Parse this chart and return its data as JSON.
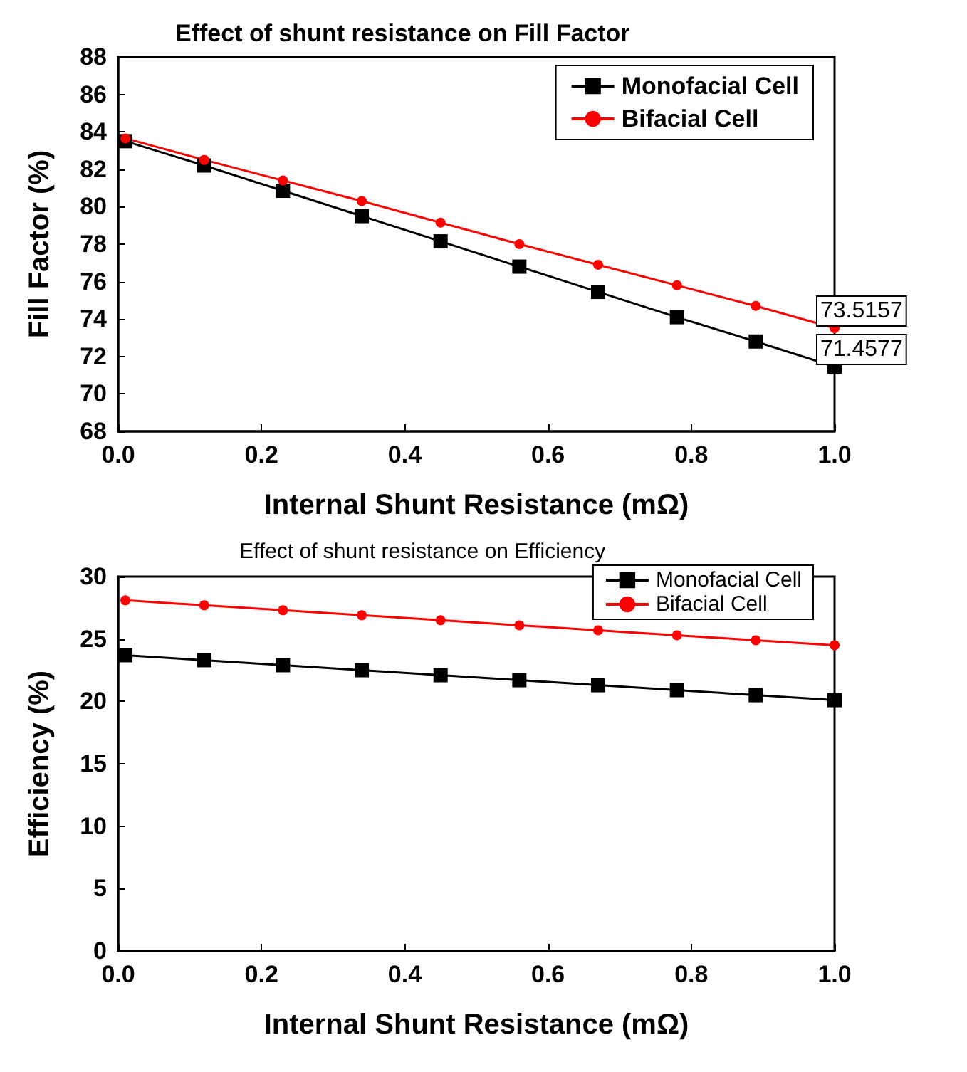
{
  "chart_data": [
    {
      "type": "line",
      "title": "Effect of shunt resistance on Fill Factor",
      "xlabel": "Internal Shunt Resistance (mΩ)",
      "ylabel": "Fill Factor (%)",
      "x": [
        0.01,
        0.12,
        0.23,
        0.34,
        0.45,
        0.56,
        0.67,
        0.78,
        0.89,
        1.0
      ],
      "series": [
        {
          "name": "Monofacial Cell",
          "color": "#000000",
          "marker": "square",
          "values": [
            83.5,
            82.2,
            80.85,
            79.5,
            78.15,
            76.8,
            75.45,
            74.1,
            72.8,
            71.4577
          ]
        },
        {
          "name": "Bifacial Cell",
          "color": "#ff0000",
          "marker": "circle",
          "values": [
            83.65,
            82.5,
            81.4,
            80.3,
            79.15,
            78.0,
            76.9,
            75.8,
            74.7,
            73.5157
          ]
        }
      ],
      "xlim": [
        0,
        1
      ],
      "xticks": [
        {
          "value": 0,
          "label": "0.0"
        },
        {
          "value": 0.2,
          "label": "0.2"
        },
        {
          "value": 0.4,
          "label": "0.4"
        },
        {
          "value": 0.6,
          "label": "0.6"
        },
        {
          "value": 0.8,
          "label": "0.8"
        },
        {
          "value": 1,
          "label": "1.0"
        }
      ],
      "ylim": [
        68,
        88
      ],
      "yticks": [
        68,
        70,
        72,
        74,
        76,
        78,
        80,
        82,
        84,
        86,
        88
      ],
      "grid": false,
      "legend": "top right",
      "annotations": [
        {
          "text": "73.5157",
          "x": 1,
          "y": 73.5157
        },
        {
          "text": "71.4577",
          "x": 1,
          "y": 71.4577
        }
      ]
    },
    {
      "type": "line",
      "title": "Effect of shunt resistance on Efficiency",
      "xlabel": "Internal Shunt Resistance (mΩ)",
      "ylabel": "Efficiency (%)",
      "x": [
        0.01,
        0.12,
        0.23,
        0.34,
        0.45,
        0.56,
        0.67,
        0.78,
        0.89,
        1.0
      ],
      "series": [
        {
          "name": "Monofacial Cell",
          "color": "#000000",
          "marker": "square",
          "values": [
            23.7,
            23.3,
            22.9,
            22.5,
            22.1,
            21.7,
            21.3,
            20.9,
            20.5,
            20.1
          ]
        },
        {
          "name": "Bifacial Cell",
          "color": "#ff0000",
          "marker": "circle",
          "values": [
            28.1,
            27.7,
            27.3,
            26.9,
            26.5,
            26.1,
            25.7,
            25.3,
            24.9,
            24.5
          ]
        }
      ],
      "xlim": [
        0,
        1
      ],
      "xticks": [
        {
          "value": 0,
          "label": "0.0"
        },
        {
          "value": 0.2,
          "label": "0.2"
        },
        {
          "value": 0.4,
          "label": "0.4"
        },
        {
          "value": 0.6,
          "label": "0.6"
        },
        {
          "value": 0.8,
          "label": "0.8"
        },
        {
          "value": 1,
          "label": "1.0"
        }
      ],
      "ylim": [
        0,
        30
      ],
      "yticks": [
        0,
        5,
        10,
        15,
        20,
        25,
        30
      ],
      "grid": false,
      "legend": "top right"
    }
  ]
}
